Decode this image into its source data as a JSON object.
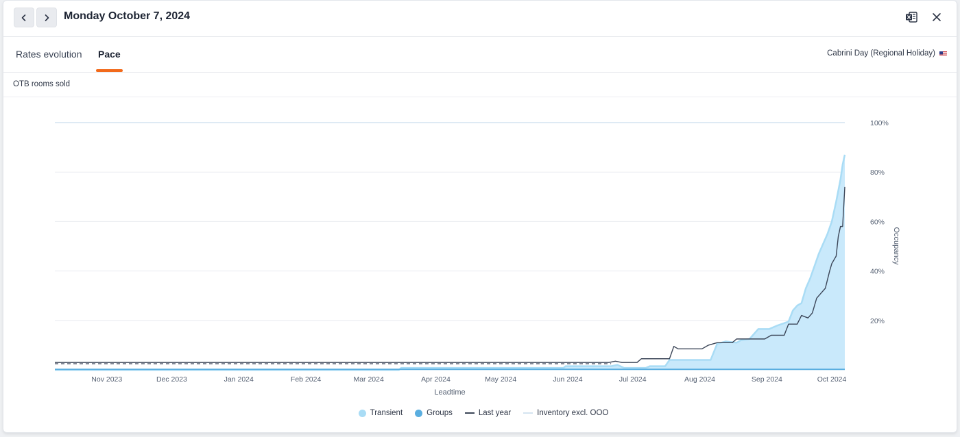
{
  "header": {
    "date_title": "Monday October 7, 2024",
    "prev_icon": "chevron-left-icon",
    "next_icon": "chevron-right-icon",
    "export_icon": "excel-export-icon",
    "close_icon": "close-icon"
  },
  "tabs": [
    {
      "label": "Rates evolution",
      "active": false
    },
    {
      "label": "Pace",
      "active": true
    }
  ],
  "holiday": {
    "label": "Cabrini Day (Regional Holiday)",
    "flag_icon": "us-flag-icon"
  },
  "section_title": "OTB rooms sold",
  "colors": {
    "transient": "#a9dcf5",
    "transient_fill": "#c9e9fb",
    "groups": "#5aaee0",
    "last_year": "#3b4557",
    "inventory": "#d4e4f0",
    "accent": "#f26a1b"
  },
  "chart_data": {
    "type": "area",
    "xlabel": "Leadtime",
    "ylabel": "Occupancy",
    "x_ticks": [
      "Nov 2023",
      "Dec 2023",
      "Jan 2024",
      "Feb 2024",
      "Mar 2024",
      "Apr 2024",
      "May 2024",
      "Jun 2024",
      "Jul 2024",
      "Aug 2024",
      "Sep 2024",
      "Oct 2024"
    ],
    "y_ticks": [
      "20%",
      "40%",
      "60%",
      "80%",
      "100%"
    ],
    "ylim": [
      0,
      100
    ],
    "grid": true,
    "legend_position": "bottom",
    "x_range": [
      "2023-10-08",
      "2024-10-07"
    ],
    "series": [
      {
        "name": "Transient",
        "kind": "area",
        "points": [
          [
            "2023-10-08",
            0
          ],
          [
            "2024-03-15",
            0
          ],
          [
            "2024-03-16",
            0.8
          ],
          [
            "2024-05-30",
            0.8
          ],
          [
            "2024-05-31",
            1.5
          ],
          [
            "2024-06-21",
            1.5
          ],
          [
            "2024-06-24",
            2
          ],
          [
            "2024-06-27",
            0.8
          ],
          [
            "2024-07-07",
            0.8
          ],
          [
            "2024-07-09",
            1.5
          ],
          [
            "2024-07-16",
            1.5
          ],
          [
            "2024-07-18",
            4
          ],
          [
            "2024-08-06",
            4
          ],
          [
            "2024-08-09",
            10.5
          ],
          [
            "2024-08-13",
            11.5
          ],
          [
            "2024-08-18",
            11
          ],
          [
            "2024-08-20",
            12
          ],
          [
            "2024-08-24",
            12.5
          ],
          [
            "2024-08-28",
            16.5
          ],
          [
            "2024-09-02",
            16.5
          ],
          [
            "2024-09-06",
            18
          ],
          [
            "2024-09-11",
            19.5
          ],
          [
            "2024-09-13",
            24
          ],
          [
            "2024-09-15",
            26
          ],
          [
            "2024-09-17",
            27
          ],
          [
            "2024-09-19",
            33
          ],
          [
            "2024-09-21",
            37
          ],
          [
            "2024-09-23",
            42
          ],
          [
            "2024-09-25",
            47
          ],
          [
            "2024-09-27",
            51
          ],
          [
            "2024-09-29",
            55
          ],
          [
            "2024-10-01",
            60
          ],
          [
            "2024-10-03",
            68
          ],
          [
            "2024-10-05",
            77
          ],
          [
            "2024-10-06",
            83
          ],
          [
            "2024-10-07",
            87
          ]
        ]
      },
      {
        "name": "Groups",
        "kind": "area",
        "points": [
          [
            "2023-10-08",
            0.2
          ],
          [
            "2024-10-07",
            0.2
          ]
        ]
      },
      {
        "name": "Last year",
        "kind": "line",
        "points": [
          [
            "2023-10-08",
            3
          ],
          [
            "2024-06-20",
            3
          ],
          [
            "2024-06-23",
            3.5
          ],
          [
            "2024-06-26",
            3
          ],
          [
            "2024-07-03",
            3
          ],
          [
            "2024-07-05",
            4.5
          ],
          [
            "2024-07-18",
            4.5
          ],
          [
            "2024-07-20",
            9.5
          ],
          [
            "2024-07-22",
            8.5
          ],
          [
            "2024-08-02",
            8.5
          ],
          [
            "2024-08-05",
            10
          ],
          [
            "2024-08-09",
            11
          ],
          [
            "2024-08-16",
            11
          ],
          [
            "2024-08-18",
            12.5
          ],
          [
            "2024-08-31",
            12.5
          ],
          [
            "2024-09-03",
            14
          ],
          [
            "2024-09-09",
            14
          ],
          [
            "2024-09-11",
            18.5
          ],
          [
            "2024-09-15",
            18.5
          ],
          [
            "2024-09-17",
            22
          ],
          [
            "2024-09-20",
            21
          ],
          [
            "2024-09-22",
            23
          ],
          [
            "2024-09-24",
            29
          ],
          [
            "2024-09-26",
            31
          ],
          [
            "2024-09-28",
            33
          ],
          [
            "2024-09-30",
            40
          ],
          [
            "2024-10-01",
            43
          ],
          [
            "2024-10-03",
            46
          ],
          [
            "2024-10-04",
            54
          ],
          [
            "2024-10-05",
            58
          ],
          [
            "2024-10-06",
            58
          ],
          [
            "2024-10-07",
            74
          ]
        ]
      },
      {
        "name": "Inventory excl. OOO",
        "kind": "line",
        "points": [
          [
            "2023-10-08",
            100
          ],
          [
            "2024-10-07",
            100
          ]
        ]
      }
    ],
    "reference_lines": [
      {
        "kind": "dashed",
        "value": 2.5,
        "x_start": "2023-10-08",
        "x_end": "2024-06-21"
      }
    ]
  }
}
